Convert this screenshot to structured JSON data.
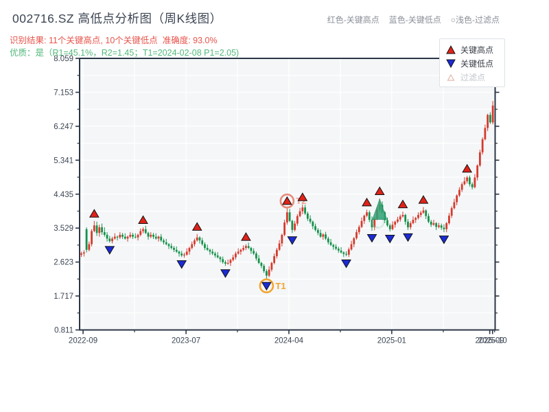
{
  "header": {
    "title": "002716.SZ 高低点分析图（周K线图）",
    "result_line": "识别结果: 11个关键高点, 10个关键低点  准确度: 93.0%",
    "quality_line": "优质：是（R1=45.1%，R2=1.45；T1=2024-02-08 P1=2.05)",
    "note_high": "红色-关键高点",
    "note_low": "蓝色-关键低点",
    "note_filter": "○浅色-过滤点"
  },
  "legend": {
    "high": "关键高点",
    "low": "关键低点",
    "filter": "过滤点"
  },
  "colors": {
    "up": "#d53a2c",
    "down": "#15914a",
    "high_marker": "#e02319",
    "low_marker": "#1b2bd5",
    "marker_edge": "#111111",
    "t1": "#f2a52c",
    "t2_circle": "#e88a7a",
    "t2_text": "#eda092",
    "green_triangle": "#2fa375",
    "faint_mark": "#8fd0ae",
    "axis": "#2b3645",
    "tick_text": "#3b4553",
    "grid": "#ffffff",
    "plot_bg": "#f4f6f8",
    "filter_symbol": "#e3b7ad"
  },
  "chart_data": {
    "type": "candlestick",
    "title": "002716.SZ 高低点分析图（周K线图）",
    "interval": "weekly",
    "ylim": [
      0.811,
      8.059
    ],
    "y_ticks": [
      8.059,
      7.153,
      6.247,
      5.341,
      4.435,
      3.529,
      2.623,
      1.717,
      0.811
    ],
    "y_minor_ticks": [
      7.606,
      6.7,
      5.794,
      4.888,
      3.982,
      3.076,
      2.17,
      1.264
    ],
    "x_ticks": [
      {
        "label": "2022-09",
        "week": 0.65
      },
      {
        "label": "2023-07",
        "week": 40.7
      },
      {
        "label": "2024-04",
        "week": 80.7
      },
      {
        "label": "2025-01",
        "week": 120.7
      },
      {
        "label": "2025-09",
        "week": 158.8
      },
      {
        "label": "2025-10",
        "week": 159.9
      }
    ],
    "x_minor_tick_weeks": [
      20.66,
      60.68,
      100.71,
      140.75,
      160.7
    ],
    "candles": [
      [
        2.82,
        2.9,
        2.76,
        2.85
      ],
      [
        2.85,
        2.94,
        2.77,
        2.88
      ],
      [
        3.5,
        3.55,
        2.88,
        2.95
      ],
      [
        2.95,
        3.17,
        2.91,
        3.1
      ],
      [
        3.1,
        3.5,
        3.04,
        3.45
      ],
      [
        3.45,
        3.72,
        3.42,
        3.6
      ],
      [
        3.6,
        3.7,
        3.32,
        3.4
      ],
      [
        3.4,
        3.62,
        3.3,
        3.55
      ],
      [
        3.55,
        3.65,
        3.35,
        3.42
      ],
      [
        3.42,
        3.55,
        3.3,
        3.35
      ],
      [
        3.35,
        3.42,
        3.17,
        3.25
      ],
      [
        3.25,
        3.32,
        3.14,
        3.18
      ],
      [
        3.18,
        3.3,
        3.12,
        3.25
      ],
      [
        3.25,
        3.39,
        3.22,
        3.3
      ],
      [
        3.3,
        3.33,
        3.2,
        3.28
      ],
      [
        3.28,
        3.42,
        3.24,
        3.35
      ],
      [
        3.35,
        3.4,
        3.24,
        3.3
      ],
      [
        3.3,
        3.39,
        3.22,
        3.25
      ],
      [
        3.25,
        3.33,
        3.17,
        3.3
      ],
      [
        3.3,
        3.42,
        3.26,
        3.35
      ],
      [
        3.35,
        3.4,
        3.24,
        3.3
      ],
      [
        3.3,
        3.39,
        3.25,
        3.28
      ],
      [
        3.28,
        3.38,
        3.2,
        3.35
      ],
      [
        3.35,
        3.52,
        3.31,
        3.45
      ],
      [
        3.45,
        3.55,
        3.39,
        3.5
      ],
      [
        3.5,
        3.59,
        3.37,
        3.4
      ],
      [
        3.4,
        3.43,
        3.22,
        3.3
      ],
      [
        3.3,
        3.42,
        3.26,
        3.35
      ],
      [
        3.35,
        3.4,
        3.24,
        3.3
      ],
      [
        3.3,
        3.39,
        3.22,
        3.25
      ],
      [
        3.25,
        3.33,
        3.17,
        3.3
      ],
      [
        3.3,
        3.37,
        3.16,
        3.2
      ],
      [
        3.2,
        3.25,
        3.09,
        3.15
      ],
      [
        3.15,
        3.24,
        3.07,
        3.1
      ],
      [
        3.1,
        3.13,
        2.97,
        3.05
      ],
      [
        3.05,
        3.12,
        2.96,
        3.0
      ],
      [
        3.0,
        3.05,
        2.89,
        2.95
      ],
      [
        2.95,
        3.04,
        2.87,
        2.9
      ],
      [
        2.9,
        2.93,
        2.77,
        2.85
      ],
      [
        2.85,
        2.92,
        2.76,
        2.8
      ],
      [
        2.8,
        2.87,
        2.74,
        2.82
      ],
      [
        2.82,
        2.99,
        2.79,
        2.9
      ],
      [
        2.9,
        3.03,
        2.82,
        3.0
      ],
      [
        3.0,
        3.17,
        2.96,
        3.1
      ],
      [
        3.1,
        3.25,
        3.04,
        3.2
      ],
      [
        3.2,
        3.37,
        3.17,
        3.28
      ],
      [
        3.28,
        3.31,
        3.12,
        3.2
      ],
      [
        3.2,
        3.27,
        3.06,
        3.1
      ],
      [
        3.1,
        3.15,
        2.94,
        3.0
      ],
      [
        3.0,
        3.09,
        2.92,
        2.95
      ],
      [
        2.95,
        2.98,
        2.82,
        2.9
      ],
      [
        2.9,
        2.97,
        2.81,
        2.85
      ],
      [
        2.85,
        2.9,
        2.74,
        2.8
      ],
      [
        2.8,
        2.89,
        2.72,
        2.75
      ],
      [
        2.75,
        2.78,
        2.62,
        2.7
      ],
      [
        2.7,
        2.77,
        2.58,
        2.62
      ],
      [
        2.62,
        2.67,
        2.52,
        2.58
      ],
      [
        2.58,
        2.69,
        2.55,
        2.6
      ],
      [
        2.6,
        2.71,
        2.52,
        2.68
      ],
      [
        2.68,
        2.82,
        2.64,
        2.75
      ],
      [
        2.75,
        2.9,
        2.69,
        2.85
      ],
      [
        2.85,
        2.99,
        2.82,
        2.9
      ],
      [
        2.9,
        2.98,
        2.82,
        2.95
      ],
      [
        2.95,
        3.07,
        2.91,
        3.0
      ],
      [
        3.0,
        3.1,
        2.94,
        3.05
      ],
      [
        3.05,
        3.14,
        2.97,
        3.0
      ],
      [
        3.0,
        3.03,
        2.84,
        2.92
      ],
      [
        2.92,
        2.99,
        2.81,
        2.85
      ],
      [
        2.85,
        2.9,
        2.66,
        2.72
      ],
      [
        2.72,
        2.81,
        2.57,
        2.6
      ],
      [
        2.6,
        2.63,
        2.46,
        2.52
      ],
      [
        2.52,
        2.57,
        2.33,
        2.38
      ],
      [
        2.38,
        2.43,
        2.18,
        2.26
      ],
      [
        2.26,
        2.51,
        2.22,
        2.42
      ],
      [
        2.42,
        2.63,
        2.37,
        2.6
      ],
      [
        2.6,
        2.85,
        2.56,
        2.78
      ],
      [
        2.78,
        3.0,
        2.72,
        2.95
      ],
      [
        2.95,
        3.21,
        2.92,
        3.12
      ],
      [
        3.12,
        3.38,
        3.04,
        3.35
      ],
      [
        3.35,
        3.75,
        3.31,
        3.68
      ],
      [
        3.68,
        4.06,
        3.62,
        3.95
      ],
      [
        3.95,
        4.04,
        3.69,
        3.72
      ],
      [
        3.72,
        3.75,
        3.4,
        3.48
      ],
      [
        3.48,
        3.72,
        3.44,
        3.65
      ],
      [
        3.65,
        3.9,
        3.59,
        3.85
      ],
      [
        3.85,
        4.07,
        3.82,
        3.98
      ],
      [
        3.98,
        4.16,
        3.9,
        4.08
      ],
      [
        4.08,
        4.15,
        3.88,
        3.92
      ],
      [
        3.92,
        3.97,
        3.72,
        3.78
      ],
      [
        3.78,
        3.87,
        3.65,
        3.7
      ],
      [
        3.7,
        3.73,
        3.5,
        3.58
      ],
      [
        3.58,
        3.65,
        3.44,
        3.48
      ],
      [
        3.48,
        3.53,
        3.34,
        3.4
      ],
      [
        3.4,
        3.49,
        3.27,
        3.3
      ],
      [
        3.3,
        3.39,
        3.22,
        3.36
      ],
      [
        3.36,
        3.43,
        3.21,
        3.25
      ],
      [
        3.25,
        3.3,
        3.09,
        3.15
      ],
      [
        3.15,
        3.24,
        3.05,
        3.08
      ],
      [
        3.08,
        3.11,
        2.95,
        3.03
      ],
      [
        3.03,
        3.1,
        2.94,
        2.98
      ],
      [
        2.98,
        3.03,
        2.87,
        2.93
      ],
      [
        2.93,
        3.02,
        2.85,
        2.88
      ],
      [
        2.88,
        2.91,
        2.76,
        2.84
      ],
      [
        2.84,
        2.91,
        2.78,
        2.82
      ],
      [
        2.82,
        3.01,
        2.76,
        2.96
      ],
      [
        2.96,
        3.19,
        2.93,
        3.1
      ],
      [
        3.1,
        3.29,
        3.02,
        3.26
      ],
      [
        3.26,
        3.49,
        3.22,
        3.42
      ],
      [
        3.42,
        3.61,
        3.36,
        3.56
      ],
      [
        3.56,
        3.81,
        3.53,
        3.72
      ],
      [
        3.72,
        3.89,
        3.64,
        3.86
      ],
      [
        3.86,
        4.02,
        3.82,
        3.95
      ],
      [
        3.95,
        4.0,
        3.69,
        3.75
      ],
      [
        3.75,
        3.84,
        3.46,
        3.55
      ],
      [
        3.55,
        3.81,
        3.47,
        3.78
      ],
      [
        3.78,
        4.09,
        3.74,
        4.02
      ],
      [
        4.02,
        4.32,
        3.96,
        4.15
      ],
      [
        4.15,
        4.24,
        3.92,
        3.95
      ],
      [
        3.95,
        3.98,
        3.66,
        3.74
      ],
      [
        3.74,
        3.81,
        3.56,
        3.6
      ],
      [
        3.6,
        3.65,
        3.44,
        3.5
      ],
      [
        3.5,
        3.71,
        3.47,
        3.62
      ],
      [
        3.62,
        3.73,
        3.54,
        3.7
      ],
      [
        3.7,
        3.83,
        3.66,
        3.76
      ],
      [
        3.76,
        3.89,
        3.7,
        3.84
      ],
      [
        3.84,
        3.97,
        3.81,
        3.88
      ],
      [
        3.88,
        3.91,
        3.62,
        3.7
      ],
      [
        3.7,
        3.77,
        3.48,
        3.55
      ],
      [
        3.55,
        3.71,
        3.49,
        3.66
      ],
      [
        3.66,
        3.84,
        3.63,
        3.75
      ],
      [
        3.75,
        3.83,
        3.67,
        3.8
      ],
      [
        3.8,
        3.95,
        3.76,
        3.88
      ],
      [
        3.88,
        3.99,
        3.82,
        3.94
      ],
      [
        3.94,
        4.09,
        3.91,
        4.0
      ],
      [
        4.0,
        4.03,
        3.77,
        3.85
      ],
      [
        3.85,
        3.92,
        3.66,
        3.7
      ],
      [
        3.7,
        3.75,
        3.56,
        3.62
      ],
      [
        3.62,
        3.75,
        3.59,
        3.66
      ],
      [
        3.66,
        3.69,
        3.48,
        3.56
      ],
      [
        3.56,
        3.67,
        3.52,
        3.6
      ],
      [
        3.6,
        3.65,
        3.48,
        3.54
      ],
      [
        3.54,
        3.63,
        3.42,
        3.5
      ],
      [
        3.5,
        3.69,
        3.42,
        3.66
      ],
      [
        3.66,
        3.93,
        3.62,
        3.86
      ],
      [
        3.86,
        4.11,
        3.8,
        4.06
      ],
      [
        4.06,
        4.31,
        4.03,
        4.22
      ],
      [
        4.22,
        4.43,
        4.14,
        4.4
      ],
      [
        4.4,
        4.62,
        4.36,
        4.55
      ],
      [
        4.55,
        4.75,
        4.49,
        4.7
      ],
      [
        4.7,
        4.89,
        4.67,
        4.78
      ],
      [
        4.78,
        4.92,
        4.72,
        4.88
      ],
      [
        4.88,
        4.93,
        4.64,
        4.7
      ],
      [
        4.7,
        4.75,
        4.56,
        4.62
      ],
      [
        4.62,
        4.97,
        4.59,
        4.88
      ],
      [
        4.88,
        5.23,
        4.8,
        5.2
      ],
      [
        5.2,
        5.62,
        5.16,
        5.55
      ],
      [
        5.55,
        5.95,
        5.49,
        5.9
      ],
      [
        5.9,
        6.29,
        5.87,
        6.2
      ],
      [
        6.2,
        6.58,
        6.12,
        6.55
      ],
      [
        6.55,
        6.62,
        6.31,
        6.35
      ],
      [
        6.35,
        6.92,
        6.3,
        6.8
      ]
    ],
    "markers": {
      "key_highs": [
        [
          5,
          3.72
        ],
        [
          24,
          3.55
        ],
        [
          45,
          3.37
        ],
        [
          64,
          3.1
        ],
        [
          80,
          4.06
        ],
        [
          86,
          4.16
        ],
        [
          111,
          4.02
        ],
        [
          116,
          4.32
        ],
        [
          125,
          3.97
        ],
        [
          133,
          4.09
        ],
        [
          150,
          4.92
        ]
      ],
      "key_lows": [
        [
          11,
          3.14
        ],
        [
          39,
          2.76
        ],
        [
          56,
          2.52
        ],
        [
          72,
          2.18
        ],
        [
          82,
          3.4
        ],
        [
          103,
          2.78
        ],
        [
          113,
          3.46
        ],
        [
          120,
          3.44
        ],
        [
          127,
          3.48
        ],
        [
          141,
          3.42
        ]
      ],
      "t1": {
        "week": 72,
        "price": 2.18,
        "label": "T1"
      },
      "t2": {
        "week": 80,
        "price": 4.06,
        "label": "T2"
      },
      "big_green_triangle": {
        "week": 116,
        "top_price": 4.3,
        "bottom_price": 3.76
      },
      "faint_filter_mark": {
        "week": 115.4,
        "price": 3.68
      }
    },
    "legend_entries": [
      "关键高点",
      "关键低点",
      "过滤点"
    ],
    "key_stats": {
      "symbol": "002716.SZ",
      "key_high_count": 11,
      "key_low_count": 10,
      "accuracy_pct": 93.0,
      "quality": "是",
      "R1_pct": 45.1,
      "R2": 1.45,
      "T1_date": "2024-02-08",
      "P1": 2.05
    }
  }
}
